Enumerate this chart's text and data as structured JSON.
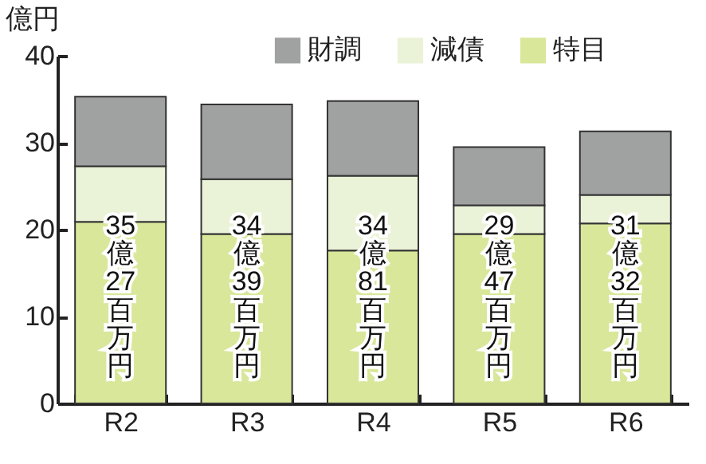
{
  "chart_data": {
    "type": "bar",
    "ylabel": "億円",
    "categories": [
      "R2",
      "R3",
      "R4",
      "R5",
      "R6"
    ],
    "stacked": true,
    "series": [
      {
        "name": "特目",
        "color": "#d9e79b",
        "values": [
          20.9,
          19.5,
          17.6,
          19.5,
          20.7
        ]
      },
      {
        "name": "減債",
        "color": "#eaf3d8",
        "values": [
          6.4,
          6.3,
          8.6,
          3.3,
          3.3
        ]
      },
      {
        "name": "財調",
        "color": "#a0a2a1",
        "values": [
          8.0,
          8.6,
          8.6,
          6.7,
          7.3
        ]
      }
    ],
    "totals": [
      "35億27百万円",
      "34億39百万円",
      "34億81百万円",
      "29億47百万円",
      "31億32百万円"
    ],
    "ylim": [
      0,
      40
    ],
    "yticks": [
      0,
      10,
      20,
      30,
      40
    ],
    "legend": "top right"
  }
}
